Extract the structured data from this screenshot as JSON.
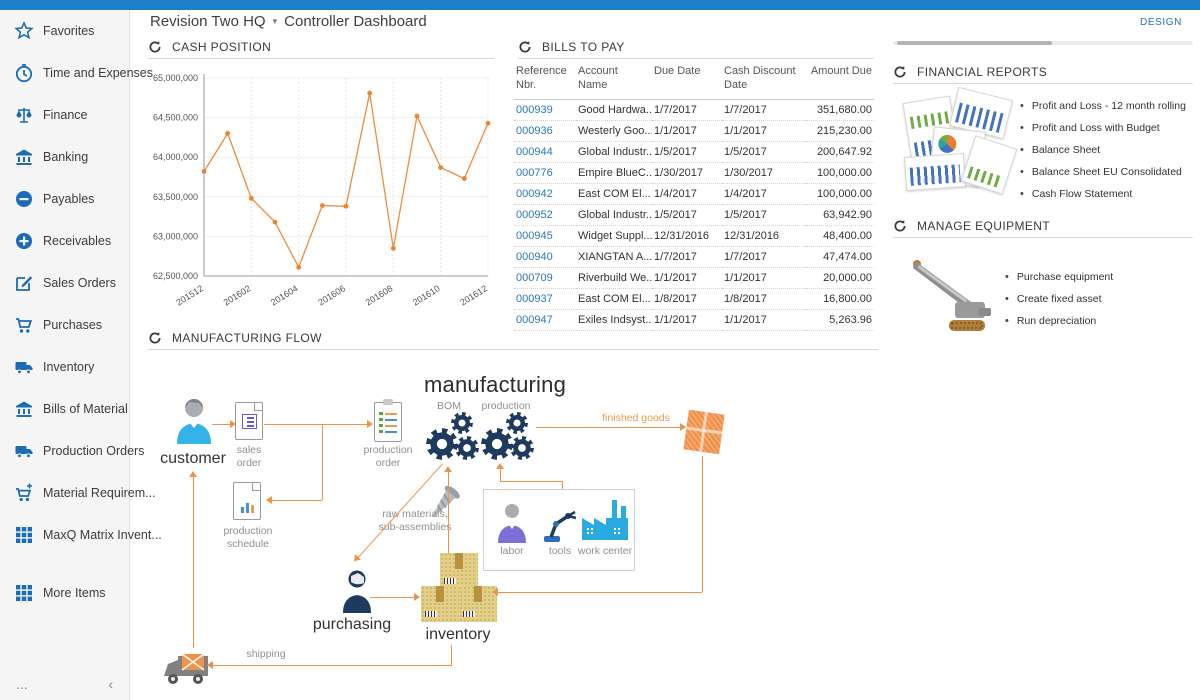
{
  "app": {
    "breadcrumb": {
      "company": "Revision Two HQ",
      "caret": "▾",
      "page": "Controller Dashboard"
    },
    "design_button": "DESIGN",
    "accent_blue": "#1d80c9",
    "accent_orange": "#f0924a"
  },
  "sidebar": {
    "items": [
      {
        "label": "Favorites",
        "icon": "star-icon"
      },
      {
        "label": "Time and Expenses",
        "icon": "clock-icon"
      },
      {
        "label": "Finance",
        "icon": "scales-icon"
      },
      {
        "label": "Banking",
        "icon": "bank-icon"
      },
      {
        "label": "Payables",
        "icon": "minus-circle-icon"
      },
      {
        "label": "Receivables",
        "icon": "plus-circle-icon"
      },
      {
        "label": "Sales Orders",
        "icon": "edit-icon"
      },
      {
        "label": "Purchases",
        "icon": "cart-icon"
      },
      {
        "label": "Inventory",
        "icon": "truck-icon"
      },
      {
        "label": "Bills of Material",
        "icon": "bank-icon"
      },
      {
        "label": "Production Orders",
        "icon": "truck-icon"
      },
      {
        "label": "Material Requirem...",
        "icon": "cart-plus-icon"
      },
      {
        "label": "MaxQ Matrix Invent...",
        "icon": "grid-icon"
      },
      {
        "label": "More Items",
        "icon": "grid-icon"
      }
    ],
    "footer": {
      "ellipsis": "...",
      "collapse": "‹"
    }
  },
  "panels": {
    "cash_position": {
      "title": "CASH POSITION"
    },
    "bills_to_pay": {
      "title": "BILLS TO PAY",
      "columns": [
        "Reference Nbr.",
        "Account Name",
        "Due Date",
        "Cash Discount Date",
        "Amount Due"
      ],
      "rows": [
        {
          "ref": "000939",
          "account": "Good Hardwa...",
          "due": "1/7/2017",
          "discount": "1/7/2017",
          "amount": "351,680.00"
        },
        {
          "ref": "000936",
          "account": "Westerly Goo...",
          "due": "1/1/2017",
          "discount": "1/1/2017",
          "amount": "215,230.00"
        },
        {
          "ref": "000944",
          "account": "Global Industr...",
          "due": "1/5/2017",
          "discount": "1/5/2017",
          "amount": "200,647.92"
        },
        {
          "ref": "000776",
          "account": "Empire BlueC...",
          "due": "1/30/2017",
          "discount": "1/30/2017",
          "amount": "100,000.00"
        },
        {
          "ref": "000942",
          "account": "East COM El...",
          "due": "1/4/2017",
          "discount": "1/4/2017",
          "amount": "100,000.00"
        },
        {
          "ref": "000952",
          "account": "Global Industr...",
          "due": "1/5/2017",
          "discount": "1/5/2017",
          "amount": "63,942.90"
        },
        {
          "ref": "000945",
          "account": "Widget Suppl...",
          "due": "12/31/2016",
          "discount": "12/31/2016",
          "amount": "48,400.00"
        },
        {
          "ref": "000940",
          "account": "XIANGTAN A...",
          "due": "1/7/2017",
          "discount": "1/7/2017",
          "amount": "47,474.00"
        },
        {
          "ref": "000709",
          "account": "Riverbuild We...",
          "due": "1/1/2017",
          "discount": "1/1/2017",
          "amount": "20,000.00"
        },
        {
          "ref": "000937",
          "account": "East COM El...",
          "due": "1/8/2017",
          "discount": "1/8/2017",
          "amount": "16,800.00"
        },
        {
          "ref": "000947",
          "account": "Exiles Indsyst...",
          "due": "1/1/2017",
          "discount": "1/1/2017",
          "amount": "5,263.96"
        }
      ]
    },
    "financial_reports": {
      "title": "FINANCIAL REPORTS",
      "links": [
        "Profit and Loss - 12 month rolling",
        "Profit and Loss with Budget",
        "Balance Sheet",
        "Balance Sheet EU Consolidated",
        "Cash Flow Statement"
      ]
    },
    "manage_equipment": {
      "title": "MANAGE EQUIPMENT",
      "links": [
        "Purchase equipment",
        "Create fixed asset",
        "Run depreciation"
      ]
    },
    "manufacturing_flow": {
      "title": "MANUFACTURING FLOW",
      "labels": {
        "manufacturing": "manufacturing",
        "bom": "BOM",
        "production": "production",
        "customer": "customer",
        "sales_order": "sales order",
        "production_schedule": "production schedule",
        "production_order": "production order",
        "finished_goods": "finished goods",
        "labor": "labor",
        "tools": "tools",
        "work_center": "work center",
        "raw_materials": "raw materials, sub-assemblies",
        "purchasing": "purchasing",
        "inventory": "inventory",
        "shipping": "shipping"
      }
    }
  },
  "chart_data": {
    "type": "line",
    "title": "CASH POSITION",
    "x": [
      "201512",
      "201601",
      "201602",
      "201603",
      "201604",
      "201605",
      "201606",
      "201607",
      "201608",
      "201609",
      "201610",
      "201611",
      "201612"
    ],
    "values": [
      63820000,
      64300000,
      63480000,
      63180000,
      62610000,
      63390000,
      63380000,
      64810000,
      62850000,
      64520000,
      63870000,
      63730000,
      64430000
    ],
    "xlabel": "",
    "ylabel": "",
    "ylim": [
      62500000,
      65000000
    ],
    "ytick_step": 500000,
    "x_labeled_every": 2,
    "grid": true,
    "legend": "none",
    "line_color": "#f28b3c"
  }
}
